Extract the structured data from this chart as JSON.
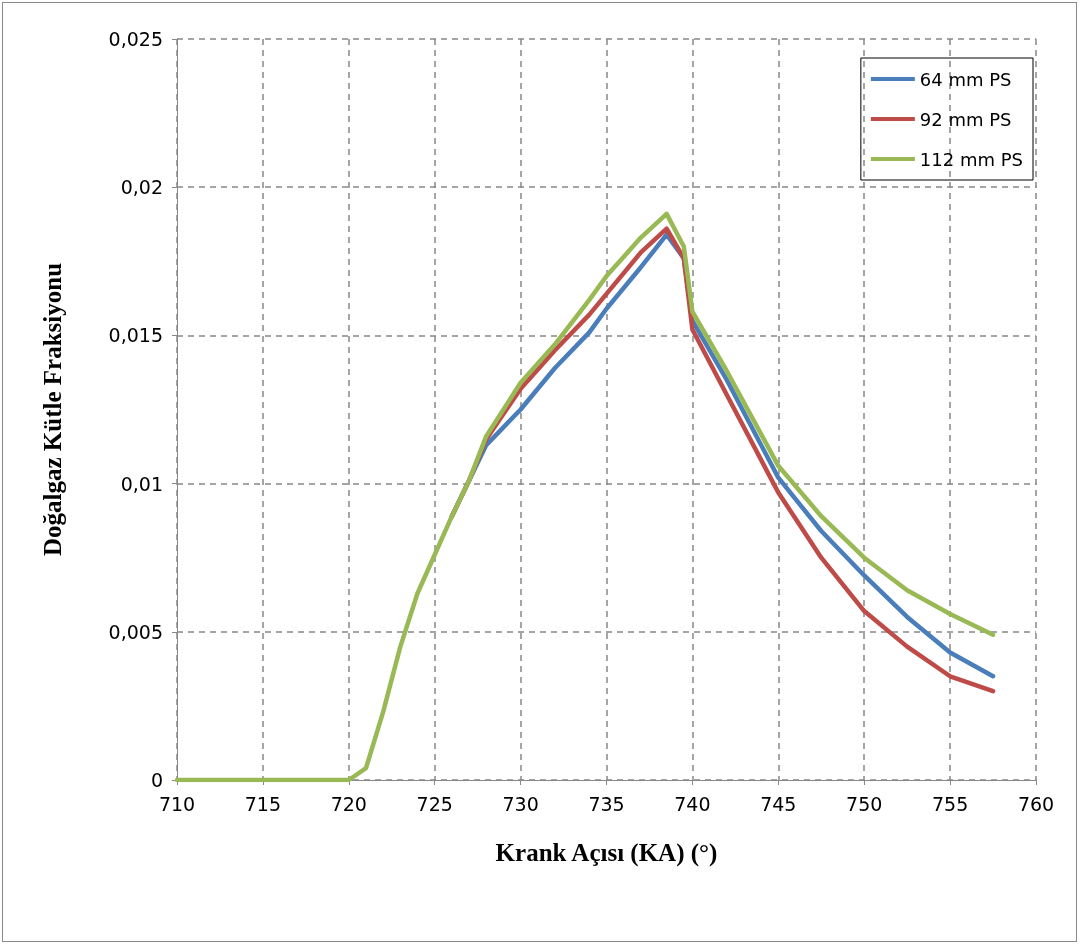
{
  "chart_data": {
    "type": "line",
    "xlabel": "Krank Açısı (KA) (°)",
    "ylabel": "Doğalgaz Kütle Fraksiyonu",
    "x": [
      710,
      720,
      721,
      722,
      723,
      724,
      725,
      726,
      727,
      728,
      730,
      732,
      734,
      735,
      737,
      738.5,
      739.5,
      740,
      742,
      745,
      747.5,
      750,
      752.5,
      755,
      757.5
    ],
    "series": [
      {
        "name": "64 mm PS",
        "color": "#4a7ebb",
        "values": [
          null,
          null,
          null,
          null,
          null,
          null,
          null,
          0.0089,
          0.0101,
          0.0113,
          0.0125,
          0.0139,
          0.0151,
          0.0159,
          0.0173,
          0.0184,
          0.0176,
          0.0155,
          0.0135,
          0.0102,
          0.0084,
          0.0069,
          0.0055,
          0.0043,
          0.0035
        ]
      },
      {
        "name": "92 mm PS",
        "color": "#be4b48",
        "values": [
          null,
          null,
          null,
          null,
          null,
          null,
          null,
          0.0089,
          0.0101,
          0.0115,
          0.0132,
          0.0145,
          0.0157,
          0.0164,
          0.0178,
          0.0186,
          0.0176,
          0.0152,
          0.013,
          0.0097,
          0.0075,
          0.0057,
          0.0045,
          0.0035,
          0.003
        ]
      },
      {
        "name": "112 mm PS",
        "color": "#98b954",
        "values": [
          0,
          0,
          0.0004,
          0.0023,
          0.0045,
          0.0063,
          0.0076,
          0.0089,
          0.0101,
          0.0116,
          0.0134,
          0.0147,
          0.0162,
          0.017,
          0.0183,
          0.0191,
          0.018,
          0.0158,
          0.0138,
          0.0106,
          0.0089,
          0.0075,
          0.0064,
          0.0056,
          0.0049
        ]
      }
    ],
    "xlim": [
      710,
      760
    ],
    "xticks": [
      710,
      715,
      720,
      725,
      730,
      735,
      740,
      745,
      750,
      755,
      760
    ],
    "ylim": [
      0,
      0.025
    ],
    "yticks": [
      {
        "value": 0,
        "label": "0"
      },
      {
        "value": 0.005,
        "label": "0,005"
      },
      {
        "value": 0.01,
        "label": "0,01"
      },
      {
        "value": 0.015,
        "label": "0,015"
      },
      {
        "value": 0.02,
        "label": "0,02"
      },
      {
        "value": 0.025,
        "label": "0,025"
      }
    ],
    "grid": true,
    "legend": "top right",
    "marker": "none",
    "line_style": "solid"
  }
}
